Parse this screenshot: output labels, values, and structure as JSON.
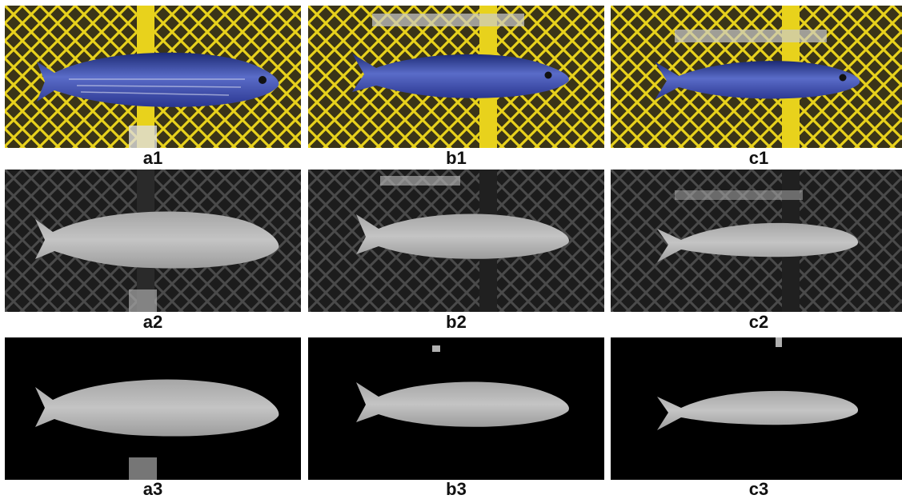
{
  "figure": {
    "labels": {
      "a1": "a1",
      "b1": "b1",
      "c1": "c1",
      "a2": "a2",
      "b2": "b2",
      "c2": "c2",
      "a3": "a3",
      "b3": "b3",
      "c3": "c3"
    }
  },
  "colors": {
    "crate_yellow": "#e8d21c",
    "fish_blue": "#2c3f9e",
    "gray_background": "#2a2a2a",
    "fish_gray": "#b8b8b8",
    "mask_black": "#000000"
  }
}
